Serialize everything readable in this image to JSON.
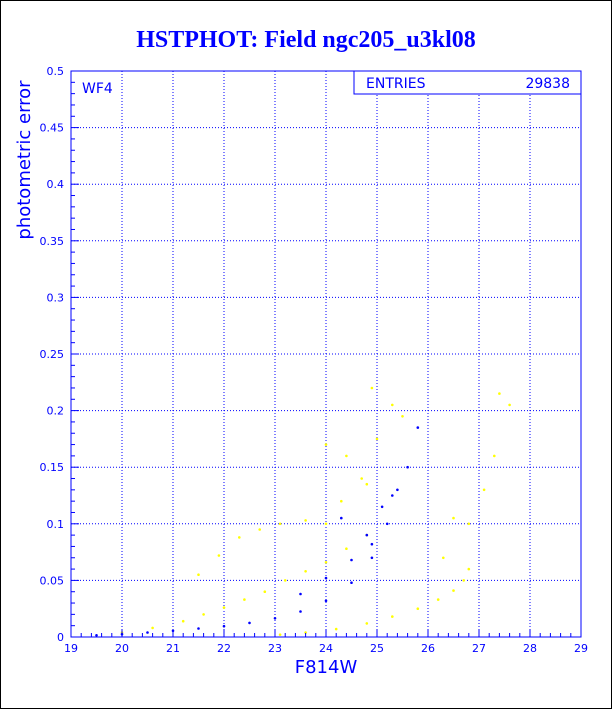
{
  "chart_data": {
    "type": "scatter",
    "title": "HSTPHOT: Field ngc205_u3kl08",
    "xlabel": "F814W",
    "ylabel": "photometric error",
    "xlim": [
      19,
      29
    ],
    "ylim": [
      0,
      0.5
    ],
    "x_ticks": [
      "19",
      "20",
      "21",
      "22",
      "23",
      "24",
      "25",
      "26",
      "27",
      "28",
      "29"
    ],
    "y_ticks": [
      "0",
      "0.05",
      "0.1",
      "0.15",
      "0.2",
      "0.25",
      "0.3",
      "0.35",
      "0.4",
      "0.45",
      "0.5"
    ],
    "grid": true,
    "grid_style": "dotted",
    "panel_label": "WF4",
    "stats": {
      "label": "ENTRIES",
      "value": "29838"
    },
    "colors": {
      "axes": "#0000ff",
      "background": "#ffffff",
      "frame": "#000000"
    },
    "series": [
      {
        "color": "#ffff00",
        "points": [
          [
            20.0,
            0.004
          ],
          [
            20.6,
            0.008
          ],
          [
            21.2,
            0.014
          ],
          [
            21.6,
            0.02
          ],
          [
            22.0,
            0.026
          ],
          [
            22.4,
            0.033
          ],
          [
            22.8,
            0.04
          ],
          [
            23.2,
            0.05
          ],
          [
            23.6,
            0.058
          ],
          [
            24.0,
            0.066
          ],
          [
            24.4,
            0.078
          ],
          [
            24.8,
            0.09
          ],
          [
            21.5,
            0.055
          ],
          [
            21.9,
            0.072
          ],
          [
            22.3,
            0.088
          ],
          [
            22.7,
            0.095
          ],
          [
            23.1,
            0.1
          ],
          [
            23.6,
            0.103
          ],
          [
            24.0,
            0.1
          ],
          [
            24.3,
            0.12
          ],
          [
            24.8,
            0.135
          ],
          [
            24.4,
            0.16
          ],
          [
            24.0,
            0.17
          ],
          [
            24.9,
            0.22
          ],
          [
            25.3,
            0.205
          ],
          [
            25.5,
            0.195
          ],
          [
            25.0,
            0.175
          ],
          [
            24.7,
            0.14
          ],
          [
            23.1,
            0.002
          ],
          [
            23.6,
            0.004
          ],
          [
            24.2,
            0.007
          ],
          [
            24.8,
            0.012
          ],
          [
            25.3,
            0.018
          ],
          [
            25.8,
            0.025
          ],
          [
            26.2,
            0.033
          ],
          [
            26.5,
            0.041
          ],
          [
            26.7,
            0.05
          ],
          [
            26.8,
            0.06
          ],
          [
            26.5,
            0.105
          ],
          [
            26.8,
            0.1
          ],
          [
            27.3,
            0.16
          ],
          [
            27.4,
            0.215
          ],
          [
            27.6,
            0.205
          ],
          [
            27.1,
            0.13
          ],
          [
            26.3,
            0.07
          ]
        ]
      },
      {
        "color": "#0000ff",
        "points": [
          [
            19.5,
            0.0015
          ],
          [
            20.0,
            0.0025
          ],
          [
            20.5,
            0.004
          ],
          [
            21.0,
            0.0055
          ],
          [
            21.5,
            0.0075
          ],
          [
            22.0,
            0.0095
          ],
          [
            22.5,
            0.0125
          ],
          [
            23.0,
            0.0165
          ],
          [
            23.5,
            0.0225
          ],
          [
            24.0,
            0.032
          ],
          [
            24.5,
            0.048
          ],
          [
            24.9,
            0.07
          ],
          [
            23.5,
            0.038
          ],
          [
            24.0,
            0.052
          ],
          [
            24.5,
            0.068
          ],
          [
            24.9,
            0.082
          ],
          [
            24.3,
            0.105
          ],
          [
            24.8,
            0.09
          ],
          [
            25.1,
            0.115
          ],
          [
            25.4,
            0.13
          ],
          [
            25.6,
            0.15
          ],
          [
            25.8,
            0.185
          ],
          [
            25.3,
            0.125
          ],
          [
            25.2,
            0.1
          ]
        ]
      }
    ]
  }
}
